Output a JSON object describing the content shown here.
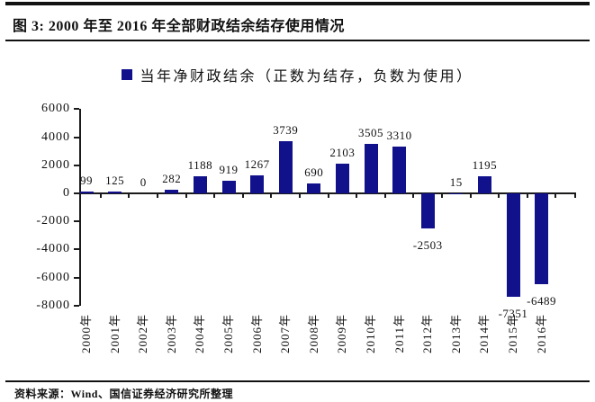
{
  "figure": {
    "title": "图 3: 2000 年至 2016 年全部财政结余结存使用情况",
    "source": "资料来源：Wind、国信证券经济研究所整理"
  },
  "chart_data": {
    "type": "bar",
    "series_name": "当年净财政结余（正数为结存，负数为使用）",
    "categories": [
      "2000年",
      "2001年",
      "2002年",
      "2003年",
      "2004年",
      "2005年",
      "2006年",
      "2007年",
      "2008年",
      "2009年",
      "2010年",
      "2011年",
      "2012年",
      "2013年",
      "2014年",
      "2015年",
      "2016年"
    ],
    "values": [
      99,
      125,
      0,
      282,
      1188,
      919,
      1267,
      3739,
      690,
      2103,
      3505,
      3310,
      -2503,
      15,
      1195,
      -7351,
      -6489
    ],
    "ylim": [
      -8000,
      6000
    ],
    "ytick_labels": [
      "6000",
      "4000",
      "2000",
      "0",
      "-2000",
      "-4000",
      "-6000",
      "-8000"
    ],
    "bar_color": "#11118C",
    "grid": false,
    "legend_position": "top",
    "data_labels": "outside-end"
  }
}
